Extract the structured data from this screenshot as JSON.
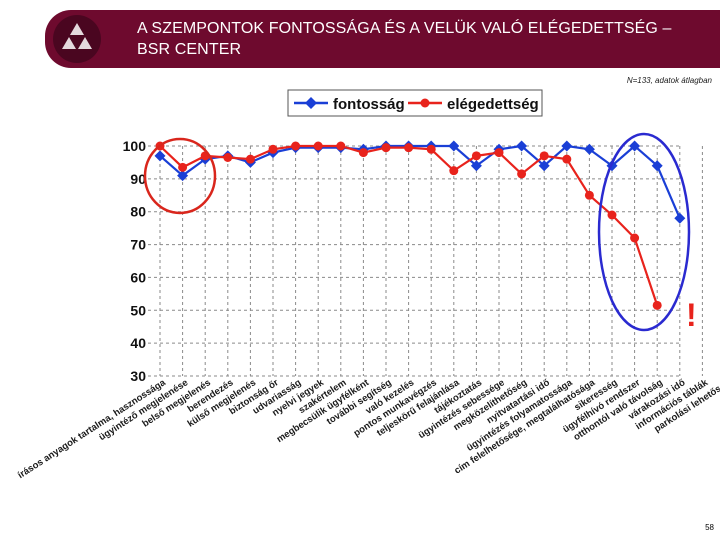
{
  "header": {
    "title_line1": "A SZEMPONTOK FONTOSSÁGA ÉS A VELÜK VALÓ ELÉGEDETTSÉG –",
    "title_line2": "BSR CENTER"
  },
  "note": "N=133, adatok átlagban",
  "page_number": "58",
  "exclamation": "!",
  "colors": {
    "fontossag": "#1a3fd6",
    "elegedettseg": "#e8231c",
    "header_bg": "#6e0a2e",
    "circle_red": "#d9261c",
    "circle_blue": "#2a2ad0"
  },
  "chart_data": {
    "type": "line",
    "title": "",
    "xlabel": "",
    "ylabel": "",
    "ylim": [
      30,
      100
    ],
    "yticks": [
      30,
      40,
      50,
      60,
      70,
      80,
      90,
      100
    ],
    "grid": true,
    "legend_position": "top-center",
    "categories": [
      "írásos anyagok tartalma, hasznossága",
      "ügyintéző megjelenése",
      "belső megjelenés",
      "berendezés",
      "külső megjelenés",
      "biztonság őr",
      "udvariasság",
      "nyelvi jegyek",
      "szakértelem",
      "megbecsülik ügyfélként",
      "további segítség",
      "való kezelés",
      "pontos munkavégzés",
      "teljeskörű felajánlása",
      "tájékoztatás",
      "ügyintézés sebessége",
      "megközelíthetőség",
      "nyitvatartási idő",
      "ügyintézés folyamatossága",
      "cím felelhetősége, megtalálhatósága",
      "sikeresség",
      "ügyfélhívó rendszer",
      "otthontól való távolság",
      "várakozási idő",
      "információs táblák",
      "parkolási lehetőség"
    ],
    "series": [
      {
        "name": "fontosság",
        "color": "#1a3fd6",
        "marker": "diamond",
        "values": [
          97,
          91,
          96,
          97,
          95,
          98,
          99.5,
          99.5,
          99.5,
          99,
          100,
          100,
          100,
          100,
          94,
          99,
          100,
          94,
          100,
          99,
          94,
          100,
          94,
          78,
          null,
          null
        ]
      },
      {
        "name": "elégedettség",
        "color": "#e8231c",
        "marker": "circle",
        "values": [
          100,
          93.5,
          97,
          96.5,
          96,
          99,
          100,
          100,
          100,
          98,
          99.5,
          99.5,
          99,
          92.5,
          97,
          98,
          91.5,
          97,
          96,
          85,
          79,
          72,
          51.5,
          null,
          null,
          null
        ]
      }
    ]
  }
}
